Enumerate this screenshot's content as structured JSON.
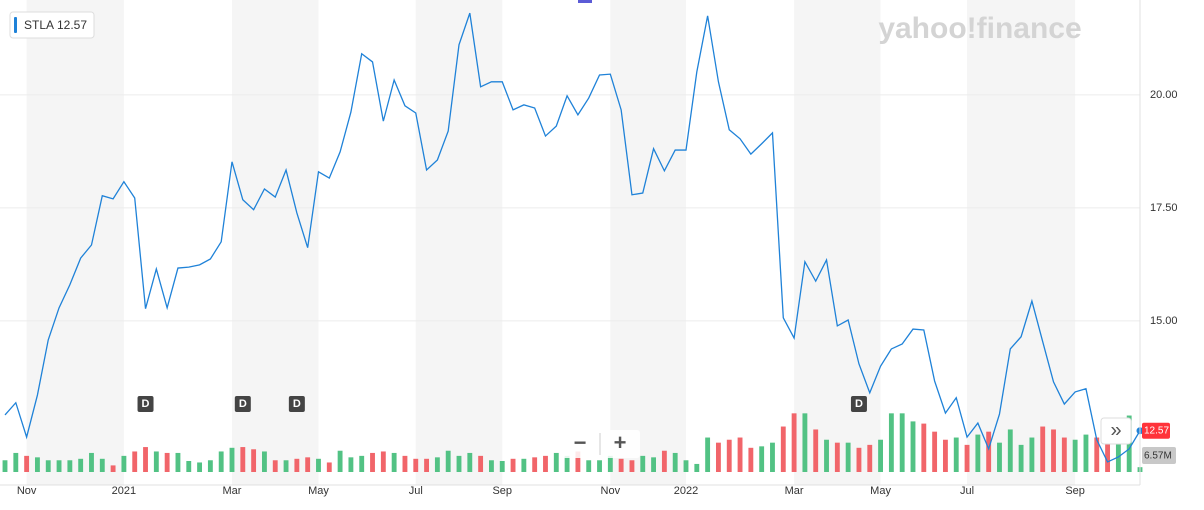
{
  "chart_data": {
    "type": "line",
    "brand": "yahoo!finance",
    "series": [
      {
        "name": "STLA",
        "color": "#1f82d8",
        "values": [
          12.92,
          13.19,
          12.43,
          13.36,
          14.58,
          15.29,
          15.8,
          16.39,
          16.68,
          17.77,
          17.7,
          18.08,
          17.72,
          15.27,
          16.15,
          15.29,
          16.17,
          16.19,
          16.24,
          16.37,
          16.75,
          18.52,
          17.68,
          17.46,
          17.92,
          17.74,
          18.34,
          17.39,
          16.62,
          18.3,
          18.16,
          18.74,
          19.62,
          20.91,
          20.73,
          19.42,
          20.33,
          19.76,
          19.6,
          18.34,
          18.56,
          19.2,
          21.11,
          21.81,
          20.18,
          20.29,
          20.29,
          19.67,
          19.78,
          19.71,
          19.09,
          19.31,
          19.98,
          19.56,
          19.93,
          20.44,
          20.46,
          19.67,
          17.79,
          17.83,
          18.81,
          18.32,
          18.78,
          18.78,
          20.51,
          21.75,
          20.29,
          19.23,
          19.03,
          18.69,
          18.92,
          19.16,
          15.07,
          14.62,
          16.31,
          15.88,
          16.35,
          14.89,
          15.02,
          14.05,
          13.41,
          14.0,
          14.38,
          14.49,
          14.82,
          14.8,
          13.67,
          12.96,
          13.3,
          12.43,
          12.74,
          12.17,
          12.94,
          14.38,
          14.65,
          15.44,
          14.54,
          13.65,
          13.16,
          13.43,
          13.5,
          12.37,
          11.88,
          11.99,
          12.17,
          12.57
        ]
      }
    ],
    "volume": {
      "up_color": "#52c284",
      "down_color": "#f1656a",
      "ylim": [
        0,
        150
      ],
      "values": [
        16,
        26,
        22,
        20,
        16,
        16,
        16,
        18,
        26,
        18,
        9,
        22,
        28,
        34,
        28,
        26,
        26,
        15,
        13,
        16,
        28,
        33,
        34,
        31,
        28,
        16,
        16,
        18,
        20,
        18,
        13,
        29,
        20,
        22,
        26,
        28,
        26,
        22,
        18,
        18,
        20,
        29,
        22,
        26,
        22,
        16,
        15,
        18,
        18,
        20,
        22,
        26,
        22,
        28,
        16,
        16,
        22,
        18,
        16,
        22,
        20,
        29,
        26,
        16,
        11,
        47,
        40,
        44,
        47,
        33,
        35,
        40,
        62,
        80,
        80,
        58,
        44,
        40,
        40,
        33,
        37,
        44,
        80,
        80,
        69,
        66,
        55,
        44,
        47,
        37,
        51,
        55,
        40,
        58,
        37,
        47,
        62,
        58,
        47,
        44,
        51,
        47,
        58,
        73,
        77,
        6.57
      ],
      "value_labels": [
        null,
        null,
        null,
        null,
        null,
        null,
        null,
        null,
        null,
        null,
        null,
        null,
        null,
        null,
        null,
        null,
        null,
        null,
        null,
        null,
        null,
        null,
        null,
        null,
        null,
        null,
        null,
        null,
        null,
        null,
        null,
        null,
        null,
        null,
        null,
        null,
        null,
        null,
        null,
        null,
        null,
        null,
        null,
        null,
        null,
        null,
        null,
        null,
        null,
        null,
        null,
        null,
        null,
        null,
        null,
        null,
        null,
        null,
        null,
        null,
        null,
        null,
        null,
        null,
        null,
        null,
        null,
        null,
        null,
        null,
        null,
        null,
        null,
        null,
        null,
        null,
        null,
        null,
        null,
        null,
        null,
        null,
        null,
        null,
        null,
        null,
        null,
        null,
        null,
        null,
        null,
        null,
        null,
        null,
        null,
        null,
        null,
        null,
        null,
        null,
        null,
        null,
        null,
        null,
        null,
        "6.57M"
      ]
    },
    "categories": [
      null,
      null,
      "Nov",
      null,
      null,
      null,
      null,
      null,
      null,
      null,
      null,
      "2021",
      null,
      null,
      null,
      null,
      null,
      null,
      null,
      null,
      null,
      "Mar",
      null,
      null,
      null,
      null,
      null,
      null,
      null,
      "May",
      null,
      null,
      null,
      null,
      null,
      null,
      null,
      null,
      "Jul",
      null,
      null,
      null,
      null,
      null,
      null,
      null,
      "Sep",
      null,
      null,
      null,
      null,
      null,
      null,
      null,
      null,
      null,
      "Nov",
      null,
      null,
      null,
      null,
      null,
      null,
      "2022",
      null,
      null,
      null,
      null,
      null,
      null,
      null,
      null,
      null,
      "Mar",
      null,
      null,
      null,
      null,
      null,
      null,
      null,
      "May",
      null,
      null,
      null,
      null,
      null,
      null,
      null,
      "Jul",
      null,
      null,
      null,
      null,
      null,
      null,
      null,
      null,
      null,
      "Sep",
      null,
      null,
      null,
      null,
      null,
      null
    ],
    "events": [
      {
        "index": 13,
        "label": "D"
      },
      {
        "index": 22,
        "label": "D"
      },
      {
        "index": 27,
        "label": "D"
      },
      {
        "index": 79,
        "label": "D"
      }
    ],
    "ylim": [
      11.37,
      22.1
    ],
    "yticks": [
      {
        "value": 15,
        "label": "15.00"
      },
      {
        "value": 17.5,
        "label": "17.50"
      },
      {
        "value": 20,
        "label": "20.00"
      }
    ],
    "grid": true,
    "zoom_out": "−",
    "zoom_in": "+",
    "scroll": "»"
  }
}
